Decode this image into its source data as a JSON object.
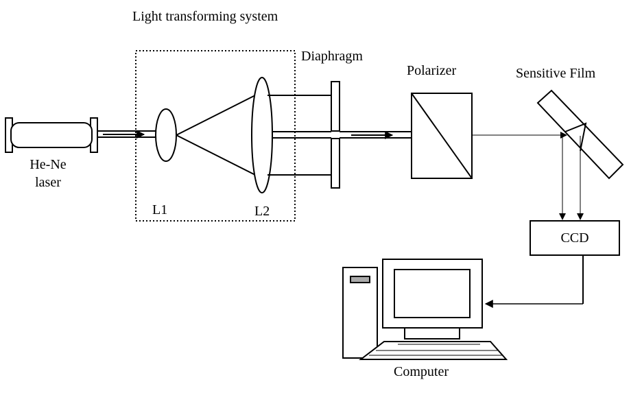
{
  "labels": {
    "system_title": "Light transforming system",
    "laser_line1": "He-Ne",
    "laser_line2": "laser",
    "lens1": "L1",
    "lens2": "L2",
    "diaphragm": "Diaphragm",
    "polarizer": "Polarizer",
    "sensitive_film": "Sensitive Film",
    "ccd": "CCD",
    "computer": "Computer"
  }
}
